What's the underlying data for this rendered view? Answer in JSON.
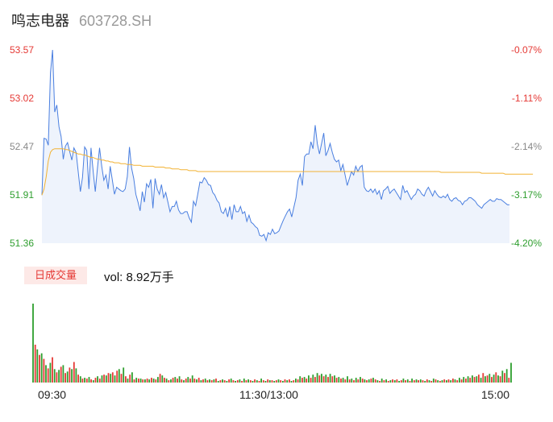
{
  "header": {
    "name": "鸣志电器",
    "code": "603728.SH"
  },
  "price_axis": {
    "left_labels": [
      "53.57",
      "53.02",
      "52.47",
      "51.91",
      "51.36"
    ],
    "right_labels": [
      "-0.07%",
      "-1.11%",
      "-2.14%",
      "-3.17%",
      "-4.20%"
    ]
  },
  "volume": {
    "tab_label": "日成交量",
    "vol_text": "vol: 8.92万手"
  },
  "time_axis": {
    "labels": [
      "09:30",
      "11:30/13:00",
      "15:00"
    ]
  },
  "colors": {
    "up": "#e53935",
    "down": "#26a69a",
    "green_bar": "#2e9e2e",
    "price_line": "#4a7fe0",
    "avg_line": "#f2b233",
    "fill": "#eef3fc"
  },
  "chart_data": [
    {
      "type": "line",
      "series": [
        {
          "name": "price",
          "values": [
            51.91,
            52.56,
            52.55,
            52.48,
            53.31,
            53.57,
            52.86,
            52.94,
            52.69,
            52.58,
            52.32,
            52.47,
            52.51,
            52.41,
            52.31,
            52.45,
            52.4,
            52.18,
            51.95,
            52.11,
            52.46,
            52.42,
            51.98,
            52.45,
            52.18,
            51.95,
            52.22,
            52.45,
            52.24,
            52.08,
            52.14,
            51.98,
            52.24,
            52.08,
            51.92,
            52.0,
            51.98,
            51.96,
            51.95,
            51.98,
            52.12,
            52.46,
            52.22,
            52.1,
            51.92,
            51.83,
            51.73,
            51.95,
            51.83,
            52.04,
            52.0,
            52.09,
            51.76,
            52.1,
            51.98,
            51.92,
            52.03,
            51.88,
            51.94,
            51.83,
            51.72,
            51.78,
            51.78,
            51.84,
            51.74,
            51.7,
            51.7,
            51.72,
            51.72,
            51.65,
            51.6,
            51.84,
            51.79,
            51.92,
            52.06,
            52.05,
            52.11,
            52.08,
            52.03,
            52.02,
            51.94,
            51.91,
            51.85,
            51.82,
            51.72,
            51.7,
            51.76,
            51.66,
            51.78,
            51.63,
            51.8,
            51.72,
            51.72,
            51.78,
            51.7,
            51.72,
            51.61,
            51.68,
            51.6,
            51.58,
            51.55,
            51.53,
            51.45,
            51.44,
            51.46,
            51.39,
            51.48,
            51.46,
            51.52,
            51.47,
            51.48,
            51.5,
            51.56,
            51.62,
            51.67,
            51.72,
            51.75,
            51.66,
            51.77,
            51.88,
            52.08,
            52.15,
            52.02,
            52.35,
            52.38,
            52.38,
            52.52,
            52.44,
            52.71,
            52.5,
            52.38,
            52.5,
            52.62,
            52.36,
            52.42,
            52.5,
            52.4,
            52.32,
            52.29,
            52.31,
            52.19,
            52.26,
            52.14,
            52.02,
            52.1,
            52.18,
            52.14,
            52.24,
            52.18,
            52.23,
            52.25,
            52.0,
            51.96,
            51.95,
            51.98,
            51.94,
            51.98,
            51.92,
            51.96,
            51.86,
            51.96,
            51.98,
            52.01,
            51.93,
            51.96,
            51.98,
            51.94,
            51.9,
            51.86,
            52.02,
            51.94,
            51.96,
            51.91,
            51.86,
            51.9,
            51.92,
            51.98,
            51.96,
            51.92,
            51.9,
            51.96,
            52.0,
            51.95,
            51.9,
            51.96,
            51.92,
            51.89,
            51.88,
            51.9,
            51.88,
            51.92,
            51.86,
            51.84,
            51.87,
            51.88,
            51.85,
            51.84,
            51.8,
            51.84,
            51.85,
            51.88,
            51.88,
            51.86,
            51.84,
            51.8,
            51.78,
            51.76,
            51.8,
            51.82,
            51.84,
            51.86,
            51.84,
            51.84,
            51.87,
            51.86,
            51.86,
            51.84,
            51.82,
            51.8,
            51.8
          ]
        },
        {
          "name": "average",
          "values": [
            51.91,
            51.98,
            52.12,
            52.3,
            52.4,
            52.43,
            52.44,
            52.44,
            52.44,
            52.44,
            52.44,
            52.43,
            52.43,
            52.42,
            52.41,
            52.4,
            52.39,
            52.38,
            52.38,
            52.37,
            52.37,
            52.36,
            52.35,
            52.34,
            52.34,
            52.33,
            52.32,
            52.32,
            52.31,
            52.31,
            52.3,
            52.3,
            52.29,
            52.29,
            52.28,
            52.28,
            52.28,
            52.27,
            52.27,
            52.27,
            52.26,
            52.26,
            52.26,
            52.25,
            52.25,
            52.25,
            52.25,
            52.24,
            52.24,
            52.24,
            52.24,
            52.24,
            52.24,
            52.23,
            52.23,
            52.23,
            52.23,
            52.23,
            52.22,
            52.22,
            52.22,
            52.21,
            52.21,
            52.21,
            52.21,
            52.2,
            52.2,
            52.2,
            52.2,
            52.19,
            52.19,
            52.19,
            52.19,
            52.18,
            52.18,
            52.18,
            52.18,
            52.18,
            52.18,
            52.18,
            52.18,
            52.18,
            52.18,
            52.18,
            52.18,
            52.18,
            52.18,
            52.18,
            52.18,
            52.18,
            52.18,
            52.18,
            52.18,
            52.18,
            52.18,
            52.18,
            52.18,
            52.18,
            52.18,
            52.18,
            52.18,
            52.18,
            52.18,
            52.18,
            52.18,
            52.18,
            52.18,
            52.18,
            52.18,
            52.18,
            52.18,
            52.18,
            52.18,
            52.18,
            52.18,
            52.18,
            52.18,
            52.18,
            52.18,
            52.18,
            52.18,
            52.18,
            52.18,
            52.18,
            52.18,
            52.18,
            52.18,
            52.18,
            52.18,
            52.18,
            52.18,
            52.18,
            52.18,
            52.18,
            52.18,
            52.18,
            52.18,
            52.18,
            52.18,
            52.18,
            52.18,
            52.18,
            52.18,
            52.18,
            52.18,
            52.18,
            52.18,
            52.18,
            52.18,
            52.18,
            52.18,
            52.18,
            52.18,
            52.18,
            52.18,
            52.18,
            52.18,
            52.18,
            52.18,
            52.18,
            52.18,
            52.18,
            52.18,
            52.18,
            52.18,
            52.18,
            52.18,
            52.18,
            52.18,
            52.18,
            52.18,
            52.18,
            52.18,
            52.18,
            52.18,
            52.18,
            52.18,
            52.18,
            52.18,
            52.18,
            52.18,
            52.18,
            52.18,
            52.18,
            52.18,
            52.18,
            52.18,
            52.17,
            52.17,
            52.17,
            52.17,
            52.17,
            52.17,
            52.17,
            52.17,
            52.17,
            52.17,
            52.17,
            52.17,
            52.17,
            52.17,
            52.17,
            52.17,
            52.17,
            52.17,
            52.17,
            52.16,
            52.16,
            52.16,
            52.16,
            52.16,
            52.16,
            52.16,
            52.16,
            52.16,
            52.16,
            52.16,
            52.15,
            52.15,
            52.15,
            52.15,
            52.15,
            52.15,
            52.15,
            52.15,
            52.15,
            52.15,
            52.15,
            52.15,
            52.15,
            52.15
          ]
        }
      ],
      "ylim": [
        51.36,
        53.57
      ]
    },
    {
      "type": "bar",
      "series": [
        {
          "name": "volume",
          "values": [
            100,
            48,
            42,
            35,
            37,
            30,
            22,
            18,
            25,
            32,
            17,
            13,
            16,
            20,
            22,
            12,
            14,
            19,
            17,
            26,
            18,
            10,
            8,
            5,
            6,
            5,
            7,
            4,
            3,
            6,
            8,
            5,
            9,
            10,
            9,
            12,
            11,
            13,
            9,
            15,
            17,
            11,
            19,
            8,
            5,
            10,
            13,
            4,
            6,
            5,
            5,
            4,
            4,
            5,
            4,
            6,
            5,
            4,
            7,
            11,
            9,
            6,
            5,
            3,
            4,
            6,
            7,
            5,
            8,
            4,
            3,
            5,
            7,
            5,
            9,
            5,
            4,
            6,
            3,
            4,
            5,
            3,
            4,
            3,
            4,
            5,
            2,
            3,
            4,
            3,
            2,
            4,
            5,
            3,
            2,
            3,
            4,
            2,
            5,
            3,
            4,
            3,
            2,
            4,
            3,
            2,
            5,
            3,
            2,
            4,
            3,
            3,
            2,
            3,
            4,
            3,
            2,
            4,
            3,
            4,
            2,
            3,
            5,
            4,
            8,
            6,
            7,
            5,
            9,
            6,
            10,
            7,
            12,
            9,
            11,
            8,
            10,
            7,
            11,
            8,
            9,
            6,
            7,
            5,
            6,
            4,
            8,
            4,
            5,
            3,
            6,
            4,
            7,
            5,
            4,
            3,
            4,
            5,
            6,
            4,
            3,
            2,
            5,
            3,
            4,
            2,
            3,
            4,
            3,
            4,
            2,
            3,
            5,
            3,
            4,
            2,
            5,
            3,
            4,
            3,
            4,
            3,
            2,
            4,
            3,
            2,
            5,
            4,
            3,
            2,
            3,
            4,
            3,
            4,
            3,
            5,
            4,
            3,
            6,
            4,
            7,
            5,
            8,
            6,
            9,
            7,
            8,
            10,
            6,
            12,
            8,
            9,
            11,
            7,
            10,
            13,
            9,
            8,
            15,
            12,
            17,
            6,
            25
          ],
          "colors": "alternating up/down"
        }
      ]
    }
  ]
}
